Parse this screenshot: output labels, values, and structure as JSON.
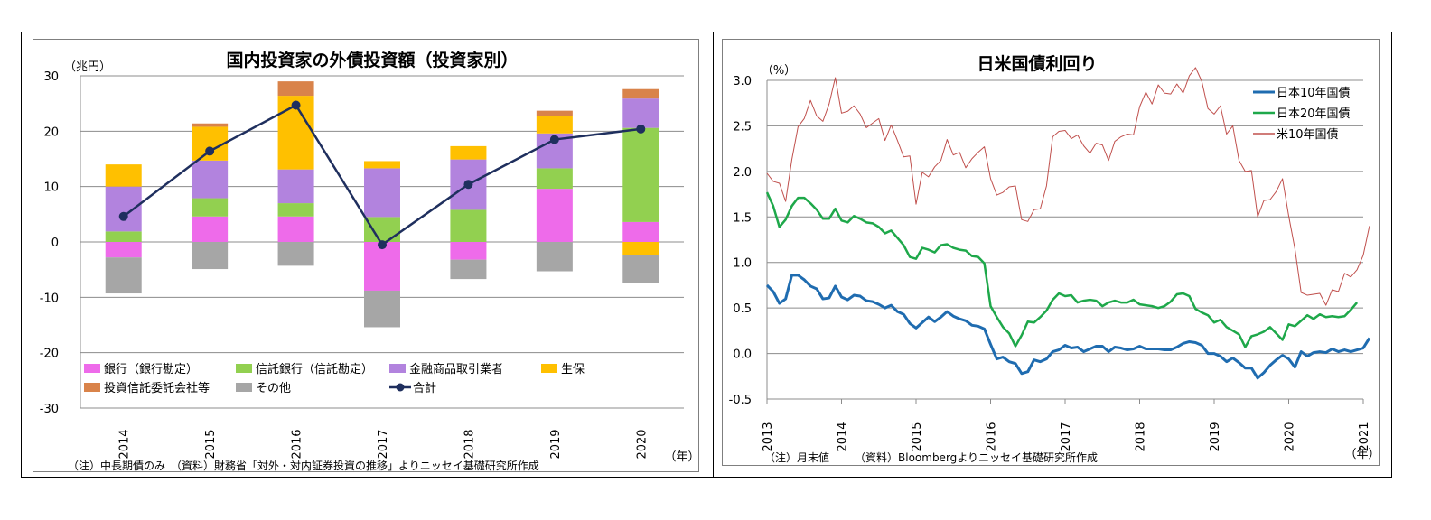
{
  "chart_data": [
    {
      "type": "bar",
      "title": "国内投資家の外債投資額（投資家別）",
      "ylabel": "（兆円）",
      "xunit": "（年）",
      "ylim": [
        -30,
        30
      ],
      "yticks": [
        "30",
        "20",
        "10",
        "0",
        "-10",
        "-20",
        "-30"
      ],
      "categories": [
        "2014",
        "2015",
        "2016",
        "2017",
        "2018",
        "2019",
        "2020"
      ],
      "stacked": true,
      "series": [
        {
          "name": "銀行（銀行勘定）",
          "color": "#ee6bea",
          "values": [
            -2.8,
            4.6,
            4.6,
            -8.8,
            -3.2,
            9.6,
            3.6
          ]
        },
        {
          "name": "信託銀行（信託勘定）",
          "color": "#92d050",
          "values": [
            1.9,
            3.3,
            2.4,
            4.5,
            5.8,
            3.7,
            17.0
          ]
        },
        {
          "name": "金融商品取引業者",
          "color": "#b283de",
          "values": [
            8.1,
            6.8,
            6.1,
            8.8,
            9.1,
            6.3,
            5.3
          ]
        },
        {
          "name": "生保",
          "color": "#ffc000",
          "values": [
            4.0,
            6.1,
            13.3,
            1.3,
            2.4,
            3.1,
            -2.3
          ]
        },
        {
          "name": "投資信託委託会社等",
          "color": "#d9834a",
          "values": [
            0,
            0.6,
            2.6,
            0,
            0,
            1.0,
            1.7
          ]
        },
        {
          "name": "その他",
          "color": "#a6a6a6",
          "values": [
            -6.5,
            -4.9,
            -4.3,
            -6.6,
            -3.5,
            -5.3,
            -5.1
          ]
        }
      ],
      "line": {
        "name": "合計",
        "color": "#1f2f5e",
        "values": [
          4.6,
          16.4,
          24.7,
          -0.5,
          10.4,
          18.5,
          20.4
        ]
      },
      "note": "（注）中長期債のみ　（資料）財務省「対外・対内証券投資の推移」よりニッセイ基礎研究所作成"
    },
    {
      "type": "line",
      "title": "日米国債利回り",
      "ylabel": "（%）",
      "xunit": "（年）",
      "ylim": [
        -0.5,
        3.0
      ],
      "yticks": [
        "3.0",
        "2.5",
        "2.0",
        "1.5",
        "1.0",
        "0.5",
        "0.0",
        "-0.5"
      ],
      "xticks": [
        "2013",
        "2014",
        "2015",
        "2016",
        "2017",
        "2018",
        "2019",
        "2020",
        "2021"
      ],
      "x_start": "2013-01",
      "series": [
        {
          "name": "日本10年国債",
          "color": "#1f6cb0",
          "values": [
            0.75,
            0.68,
            0.55,
            0.6,
            0.86,
            0.86,
            0.81,
            0.74,
            0.71,
            0.6,
            0.61,
            0.74,
            0.62,
            0.59,
            0.64,
            0.63,
            0.58,
            0.57,
            0.54,
            0.5,
            0.53,
            0.46,
            0.43,
            0.33,
            0.28,
            0.34,
            0.4,
            0.35,
            0.4,
            0.46,
            0.41,
            0.38,
            0.36,
            0.31,
            0.3,
            0.27,
            0.1,
            -0.06,
            -0.04,
            -0.09,
            -0.11,
            -0.22,
            -0.2,
            -0.07,
            -0.09,
            -0.06,
            0.02,
            0.04,
            0.09,
            0.06,
            0.07,
            0.02,
            0.05,
            0.08,
            0.08,
            0.02,
            0.07,
            0.06,
            0.04,
            0.05,
            0.08,
            0.05,
            0.05,
            0.05,
            0.04,
            0.04,
            0.07,
            0.11,
            0.13,
            0.12,
            0.09,
            0.0,
            0.0,
            -0.03,
            -0.09,
            -0.05,
            -0.1,
            -0.16,
            -0.16,
            -0.27,
            -0.21,
            -0.13,
            -0.07,
            -0.02,
            -0.06,
            -0.15,
            0.02,
            -0.03,
            0.01,
            0.02,
            0.01,
            0.05,
            0.02,
            0.04,
            0.02,
            0.04,
            0.06,
            0.17
          ]
        },
        {
          "name": "日本20年国債",
          "color": "#1ea84a",
          "values": [
            1.77,
            1.62,
            1.39,
            1.47,
            1.62,
            1.71,
            1.71,
            1.65,
            1.58,
            1.48,
            1.48,
            1.59,
            1.46,
            1.44,
            1.51,
            1.48,
            1.44,
            1.43,
            1.39,
            1.32,
            1.35,
            1.27,
            1.19,
            1.06,
            1.04,
            1.16,
            1.14,
            1.11,
            1.19,
            1.2,
            1.16,
            1.14,
            1.13,
            1.07,
            1.06,
            0.99,
            0.52,
            0.4,
            0.29,
            0.22,
            0.08,
            0.2,
            0.35,
            0.34,
            0.4,
            0.47,
            0.59,
            0.66,
            0.63,
            0.64,
            0.56,
            0.58,
            0.59,
            0.58,
            0.52,
            0.56,
            0.58,
            0.56,
            0.56,
            0.59,
            0.54,
            0.53,
            0.52,
            0.5,
            0.52,
            0.57,
            0.65,
            0.66,
            0.63,
            0.49,
            0.45,
            0.42,
            0.34,
            0.37,
            0.29,
            0.25,
            0.21,
            0.07,
            0.19,
            0.21,
            0.24,
            0.29,
            0.22,
            0.15,
            0.32,
            0.3,
            0.36,
            0.42,
            0.38,
            0.43,
            0.4,
            0.41,
            0.4,
            0.41,
            0.48,
            0.56
          ]
        },
        {
          "name": "米10年国債",
          "color": "#c0504d",
          "values": [
            1.98,
            1.89,
            1.87,
            1.67,
            2.13,
            2.49,
            2.58,
            2.78,
            2.61,
            2.55,
            2.74,
            3.03,
            2.64,
            2.66,
            2.72,
            2.63,
            2.48,
            2.53,
            2.58,
            2.34,
            2.51,
            2.34,
            2.16,
            2.17,
            1.64,
            1.99,
            1.94,
            2.05,
            2.12,
            2.35,
            2.18,
            2.21,
            2.04,
            2.14,
            2.21,
            2.27,
            1.92,
            1.74,
            1.77,
            1.83,
            1.84,
            1.47,
            1.45,
            1.58,
            1.59,
            1.84,
            2.38,
            2.44,
            2.45,
            2.36,
            2.4,
            2.28,
            2.2,
            2.31,
            2.29,
            2.12,
            2.33,
            2.38,
            2.41,
            2.4,
            2.71,
            2.87,
            2.74,
            2.95,
            2.86,
            2.85,
            2.96,
            2.86,
            3.05,
            3.14,
            2.99,
            2.69,
            2.63,
            2.72,
            2.41,
            2.5,
            2.12,
            2.0,
            2.01,
            1.5,
            1.68,
            1.69,
            1.78,
            1.92,
            1.51,
            1.15,
            0.67,
            0.64,
            0.65,
            0.66,
            0.53,
            0.7,
            0.68,
            0.88,
            0.84,
            0.92,
            1.08,
            1.4
          ]
        }
      ],
      "note1": "（注）月末値",
      "note2": "（資料）Bloombergよりニッセイ基礎研究所作成"
    }
  ]
}
